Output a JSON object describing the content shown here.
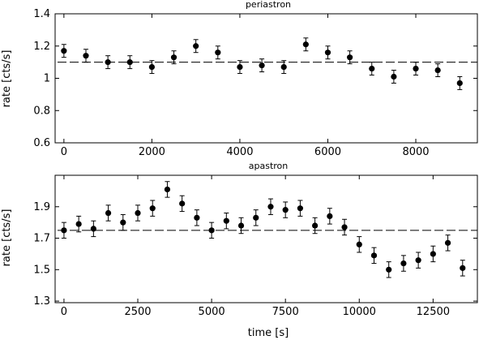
{
  "chart_data": [
    {
      "type": "scatter",
      "title": "periastron",
      "xlabel": "",
      "ylabel": "rate [cts/s]",
      "xlim": [
        -200,
        9400
      ],
      "ylim": [
        0.6,
        1.4
      ],
      "xticks": [
        0,
        2000,
        4000,
        6000,
        8000
      ],
      "xticklabels": [
        "0",
        "2000",
        "4000",
        "6000",
        "8000"
      ],
      "yticks": [
        0.6,
        0.8,
        1.0,
        1.2,
        1.4
      ],
      "yticklabels": [
        "0.6",
        "0.8",
        "1",
        "1.2",
        "1.4"
      ],
      "reference_line": 1.1,
      "grid": false,
      "points": [
        {
          "x": 0,
          "y": 1.17,
          "err": 0.04
        },
        {
          "x": 500,
          "y": 1.14,
          "err": 0.04
        },
        {
          "x": 1000,
          "y": 1.1,
          "err": 0.04
        },
        {
          "x": 1500,
          "y": 1.1,
          "err": 0.04
        },
        {
          "x": 2000,
          "y": 1.07,
          "err": 0.04
        },
        {
          "x": 2500,
          "y": 1.13,
          "err": 0.04
        },
        {
          "x": 3000,
          "y": 1.2,
          "err": 0.04
        },
        {
          "x": 3500,
          "y": 1.16,
          "err": 0.04
        },
        {
          "x": 4000,
          "y": 1.07,
          "err": 0.04
        },
        {
          "x": 4500,
          "y": 1.08,
          "err": 0.04
        },
        {
          "x": 5000,
          "y": 1.07,
          "err": 0.04
        },
        {
          "x": 5500,
          "y": 1.21,
          "err": 0.04
        },
        {
          "x": 6000,
          "y": 1.16,
          "err": 0.04
        },
        {
          "x": 6500,
          "y": 1.13,
          "err": 0.04
        },
        {
          "x": 7000,
          "y": 1.06,
          "err": 0.04
        },
        {
          "x": 7500,
          "y": 1.01,
          "err": 0.04
        },
        {
          "x": 8000,
          "y": 1.06,
          "err": 0.04
        },
        {
          "x": 8500,
          "y": 1.05,
          "err": 0.04
        },
        {
          "x": 9000,
          "y": 0.97,
          "err": 0.04
        }
      ]
    },
    {
      "type": "scatter",
      "title": "apastron",
      "xlabel": "time [s]",
      "ylabel": "rate [cts/s]",
      "xlim": [
        -300,
        14000
      ],
      "ylim": [
        1.29,
        2.1
      ],
      "xticks": [
        0,
        2500,
        5000,
        7500,
        10000,
        12500
      ],
      "xticklabels": [
        "0",
        "2500",
        "5000",
        "7500",
        "10000",
        "12500"
      ],
      "yticks": [
        1.3,
        1.5,
        1.7,
        1.9
      ],
      "yticklabels": [
        "1.3",
        "1.5",
        "1.7",
        "1.9"
      ],
      "reference_line": 1.75,
      "grid": false,
      "points": [
        {
          "x": 0,
          "y": 1.75,
          "err": 0.05
        },
        {
          "x": 500,
          "y": 1.79,
          "err": 0.05
        },
        {
          "x": 1000,
          "y": 1.76,
          "err": 0.05
        },
        {
          "x": 1500,
          "y": 1.86,
          "err": 0.05
        },
        {
          "x": 2000,
          "y": 1.8,
          "err": 0.05
        },
        {
          "x": 2500,
          "y": 1.86,
          "err": 0.05
        },
        {
          "x": 3000,
          "y": 1.89,
          "err": 0.05
        },
        {
          "x": 3500,
          "y": 2.01,
          "err": 0.05
        },
        {
          "x": 4000,
          "y": 1.92,
          "err": 0.05
        },
        {
          "x": 4500,
          "y": 1.83,
          "err": 0.05
        },
        {
          "x": 5000,
          "y": 1.75,
          "err": 0.05
        },
        {
          "x": 5500,
          "y": 1.81,
          "err": 0.05
        },
        {
          "x": 6000,
          "y": 1.78,
          "err": 0.05
        },
        {
          "x": 6500,
          "y": 1.83,
          "err": 0.05
        },
        {
          "x": 7000,
          "y": 1.9,
          "err": 0.05
        },
        {
          "x": 7500,
          "y": 1.88,
          "err": 0.05
        },
        {
          "x": 8000,
          "y": 1.89,
          "err": 0.05
        },
        {
          "x": 8500,
          "y": 1.78,
          "err": 0.05
        },
        {
          "x": 9000,
          "y": 1.84,
          "err": 0.05
        },
        {
          "x": 9500,
          "y": 1.77,
          "err": 0.05
        },
        {
          "x": 10000,
          "y": 1.66,
          "err": 0.05
        },
        {
          "x": 10500,
          "y": 1.59,
          "err": 0.05
        },
        {
          "x": 11000,
          "y": 1.5,
          "err": 0.05
        },
        {
          "x": 11500,
          "y": 1.54,
          "err": 0.05
        },
        {
          "x": 12000,
          "y": 1.56,
          "err": 0.05
        },
        {
          "x": 12500,
          "y": 1.6,
          "err": 0.05
        },
        {
          "x": 13000,
          "y": 1.67,
          "err": 0.05
        },
        {
          "x": 13500,
          "y": 1.51,
          "err": 0.05
        }
      ]
    }
  ]
}
